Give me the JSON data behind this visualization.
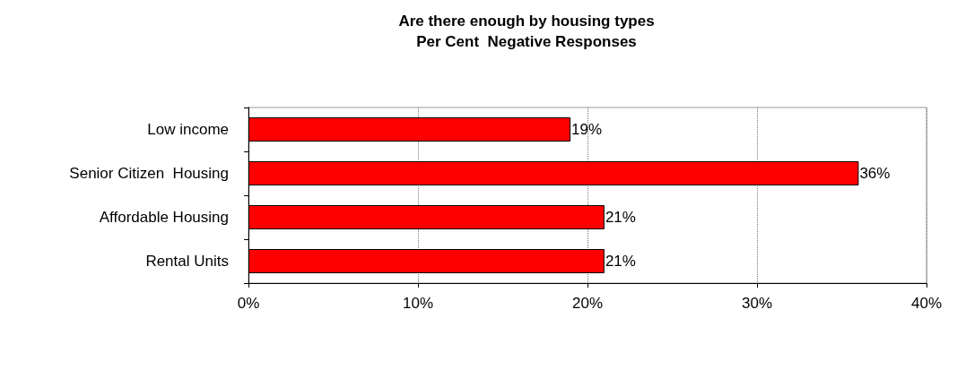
{
  "chart_data": {
    "type": "bar",
    "orientation": "horizontal",
    "title": "Are there enough by housing types",
    "subtitle": "Per Cent  Negative Responses",
    "categories": [
      "Low income",
      "Senior Citizen  Housing",
      "Affordable Housing",
      "Rental Units"
    ],
    "values": [
      19,
      36,
      21,
      21
    ],
    "color": "#ff0000",
    "value_labels": [
      "19%",
      "36%",
      "21%",
      "21%"
    ],
    "xlim": [
      0,
      40
    ],
    "xticks": [
      {
        "value": 0,
        "label": "0%"
      },
      {
        "value": 10,
        "label": "10%"
      },
      {
        "value": 20,
        "label": "20%"
      },
      {
        "value": 30,
        "label": "30%"
      },
      {
        "value": 40,
        "label": "40%"
      }
    ],
    "grid": "x"
  }
}
